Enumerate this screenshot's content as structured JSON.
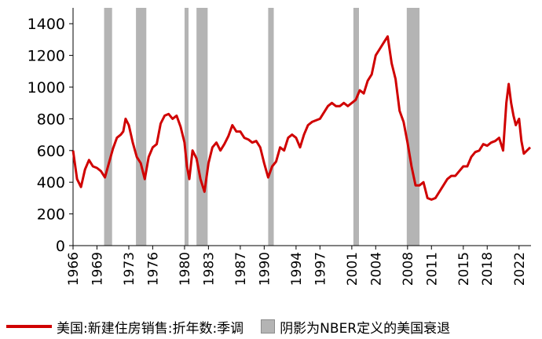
{
  "chart_data": {
    "type": "line",
    "title": "",
    "xlabel": "",
    "ylabel": "",
    "ylim": [
      0,
      1500
    ],
    "xlim": [
      1966,
      2023.5
    ],
    "yticks": [
      "0",
      "200",
      "400",
      "600",
      "800",
      "1000",
      "1200",
      "1400"
    ],
    "xticks": [
      "1966",
      "1969",
      "1973",
      "1976",
      "1980",
      "1983",
      "1987",
      "1990",
      "1994",
      "1997",
      "2001",
      "2004",
      "2008",
      "2011",
      "2015",
      "2018",
      "2022"
    ],
    "series": [
      {
        "name": "美国:新建住房销售:折年数:季调",
        "color": "#d00000",
        "x": [
          1966.0,
          1966.5,
          1967.0,
          1967.5,
          1968.0,
          1968.5,
          1969.0,
          1969.5,
          1970.0,
          1970.5,
          1971.0,
          1971.5,
          1972.0,
          1972.3,
          1972.6,
          1973.0,
          1973.5,
          1974.0,
          1974.5,
          1975.0,
          1975.5,
          1976.0,
          1976.5,
          1977.0,
          1977.5,
          1978.0,
          1978.5,
          1979.0,
          1979.5,
          1980.0,
          1980.3,
          1980.6,
          1981.0,
          1981.5,
          1982.0,
          1982.5,
          1983.0,
          1983.5,
          1984.0,
          1984.5,
          1985.0,
          1985.5,
          1986.0,
          1986.5,
          1987.0,
          1987.5,
          1988.0,
          1988.5,
          1989.0,
          1989.5,
          1990.0,
          1990.5,
          1991.0,
          1991.5,
          1992.0,
          1992.5,
          1993.0,
          1993.5,
          1994.0,
          1994.5,
          1995.0,
          1995.5,
          1996.0,
          1996.5,
          1997.0,
          1997.5,
          1998.0,
          1998.5,
          1999.0,
          1999.5,
          2000.0,
          2000.5,
          2001.0,
          2001.5,
          2002.0,
          2002.5,
          2003.0,
          2003.5,
          2004.0,
          2004.5,
          2005.0,
          2005.5,
          2006.0,
          2006.5,
          2007.0,
          2007.5,
          2008.0,
          2008.5,
          2009.0,
          2009.5,
          2010.0,
          2010.5,
          2011.0,
          2011.5,
          2012.0,
          2012.5,
          2013.0,
          2013.5,
          2014.0,
          2014.5,
          2015.0,
          2015.5,
          2016.0,
          2016.5,
          2017.0,
          2017.5,
          2018.0,
          2018.5,
          2019.0,
          2019.5,
          2020.0,
          2020.4,
          2020.7,
          2021.0,
          2021.3,
          2021.6,
          2022.0,
          2022.3,
          2022.6,
          2023.0,
          2023.4
        ],
        "values": [
          600,
          420,
          370,
          480,
          540,
          500,
          490,
          470,
          430,
          520,
          610,
          680,
          700,
          720,
          800,
          760,
          650,
          560,
          520,
          420,
          560,
          620,
          640,
          770,
          820,
          830,
          800,
          820,
          750,
          650,
          500,
          420,
          600,
          550,
          420,
          340,
          520,
          620,
          650,
          600,
          640,
          690,
          760,
          720,
          720,
          680,
          670,
          650,
          660,
          620,
          520,
          430,
          500,
          530,
          620,
          600,
          680,
          700,
          680,
          620,
          700,
          760,
          780,
          790,
          800,
          840,
          880,
          900,
          880,
          880,
          900,
          880,
          900,
          920,
          980,
          960,
          1040,
          1080,
          1200,
          1240,
          1280,
          1320,
          1150,
          1050,
          850,
          780,
          650,
          500,
          380,
          380,
          400,
          300,
          290,
          300,
          340,
          380,
          420,
          440,
          440,
          470,
          500,
          500,
          560,
          590,
          600,
          640,
          630,
          650,
          660,
          680,
          600,
          900,
          1020,
          900,
          820,
          760,
          800,
          660,
          580,
          600,
          620
        ]
      }
    ],
    "recessions": {
      "name": "阴影为NBER定义的美国衰退",
      "color": "#b4b4b4",
      "periods": [
        [
          1969.9,
          1970.9
        ],
        [
          1973.9,
          1975.2
        ],
        [
          1980.0,
          1980.5
        ],
        [
          1981.5,
          1982.9
        ],
        [
          1990.5,
          1991.2
        ],
        [
          2001.2,
          2001.9
        ],
        [
          2007.9,
          2009.5
        ]
      ]
    }
  }
}
